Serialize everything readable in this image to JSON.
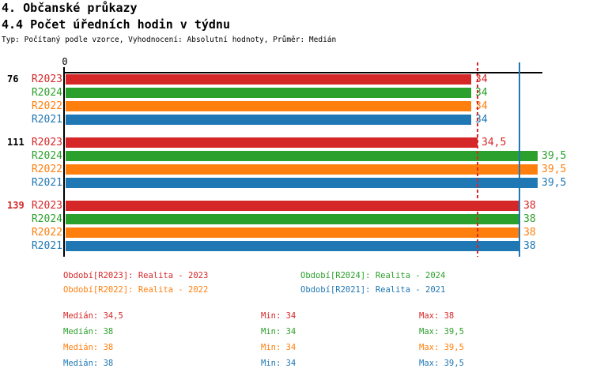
{
  "header": {
    "title": "4. Občanské průkazy",
    "subtitle": "4.4 Počet úředních hodin v týdnu",
    "meta": "Typ: Počítaný podle vzorce, Vyhodnocení: Absolutní hodnoty, Průměr: Medián"
  },
  "colors": {
    "R2023": "#d62728",
    "R2024": "#2ca02c",
    "R2022": "#ff7f0e",
    "R2021": "#1f77b4",
    "axis": "#000000"
  },
  "chart_data": {
    "type": "bar",
    "orientation": "horizontal",
    "title": "4.4 Počet úředních hodin v týdnu",
    "xlabel": "",
    "ylabel": "",
    "x_origin_label": "0",
    "xlim": [
      0,
      39.9
    ],
    "grid": false,
    "groups": [
      {
        "label": "76",
        "label_color": "#000000",
        "bars": [
          {
            "series": "R2023",
            "value": 34,
            "display": "34"
          },
          {
            "series": "R2024",
            "value": 34,
            "display": "34"
          },
          {
            "series": "R2022",
            "value": 34,
            "display": "34"
          },
          {
            "series": "R2021",
            "value": 34,
            "display": "34"
          }
        ]
      },
      {
        "label": "111",
        "label_color": "#000000",
        "bars": [
          {
            "series": "R2023",
            "value": 34.5,
            "display": "34,5"
          },
          {
            "series": "R2024",
            "value": 39.5,
            "display": "39,5"
          },
          {
            "series": "R2022",
            "value": 39.5,
            "display": "39,5"
          },
          {
            "series": "R2021",
            "value": 39.5,
            "display": "39,5"
          }
        ]
      },
      {
        "label": "139",
        "label_color": "#d62728",
        "bars": [
          {
            "series": "R2023",
            "value": 38,
            "display": "38"
          },
          {
            "series": "R2024",
            "value": 38,
            "display": "38"
          },
          {
            "series": "R2022",
            "value": 38,
            "display": "38"
          },
          {
            "series": "R2021",
            "value": 38,
            "display": "38"
          }
        ]
      }
    ],
    "reference_lines": [
      {
        "value": 34.5,
        "series": "R2023",
        "style": "dashed"
      },
      {
        "value": 38,
        "series": "R2021",
        "style": "solid"
      }
    ],
    "legend": [
      {
        "series": "R2023",
        "label": "Období[R2023]: Realita - 2023"
      },
      {
        "series": "R2024",
        "label": "Období[R2024]: Realita - 2024"
      },
      {
        "series": "R2022",
        "label": "Období[R2022]: Realita - 2022"
      },
      {
        "series": "R2021",
        "label": "Období[R2021]: Realita - 2021"
      }
    ],
    "legend_position": "bottom",
    "stats": [
      {
        "series": "R2023",
        "median": "Medián: 34,5",
        "min": "Min: 34",
        "max": "Max: 38"
      },
      {
        "series": "R2024",
        "median": "Medián: 38",
        "min": "Min: 34",
        "max": "Max: 39,5"
      },
      {
        "series": "R2022",
        "median": "Medián: 38",
        "min": "Min: 34",
        "max": "Max: 39,5"
      },
      {
        "series": "R2021",
        "median": "Medián: 38",
        "min": "Min: 34",
        "max": "Max: 39,5"
      }
    ]
  }
}
